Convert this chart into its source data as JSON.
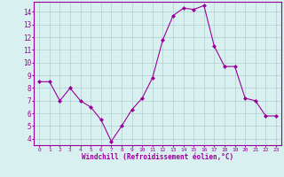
{
  "x": [
    0,
    1,
    2,
    3,
    4,
    5,
    6,
    7,
    8,
    9,
    10,
    11,
    12,
    13,
    14,
    15,
    16,
    17,
    18,
    19,
    20,
    21,
    22,
    23
  ],
  "y": [
    8.5,
    8.5,
    7.0,
    8.0,
    7.0,
    6.5,
    5.5,
    3.8,
    5.0,
    6.3,
    7.2,
    8.8,
    11.8,
    13.7,
    14.3,
    14.2,
    14.5,
    11.3,
    9.7,
    9.7,
    7.2,
    7.0,
    5.8,
    5.8
  ],
  "line_color": "#990099",
  "marker": "D",
  "marker_size": 2,
  "bg_color": "#d9f0f0",
  "grid_color": "#b0d0d0",
  "xlabel": "Windchill (Refroidissement éolien,°C)",
  "ylim": [
    3.5,
    14.8
  ],
  "xlim": [
    -0.5,
    23.5
  ],
  "yticks": [
    4,
    5,
    6,
    7,
    8,
    9,
    10,
    11,
    12,
    13,
    14
  ],
  "xtick_labels": [
    "0",
    "1",
    "2",
    "3",
    "4",
    "5",
    "6",
    "7",
    "8",
    "9",
    "10",
    "11",
    "12",
    "13",
    "14",
    "15",
    "16",
    "17",
    "18",
    "19",
    "20",
    "21",
    "22",
    "23"
  ],
  "tick_color": "#990099",
  "label_color": "#990099",
  "axis_color": "#990099",
  "font_family": "monospace"
}
